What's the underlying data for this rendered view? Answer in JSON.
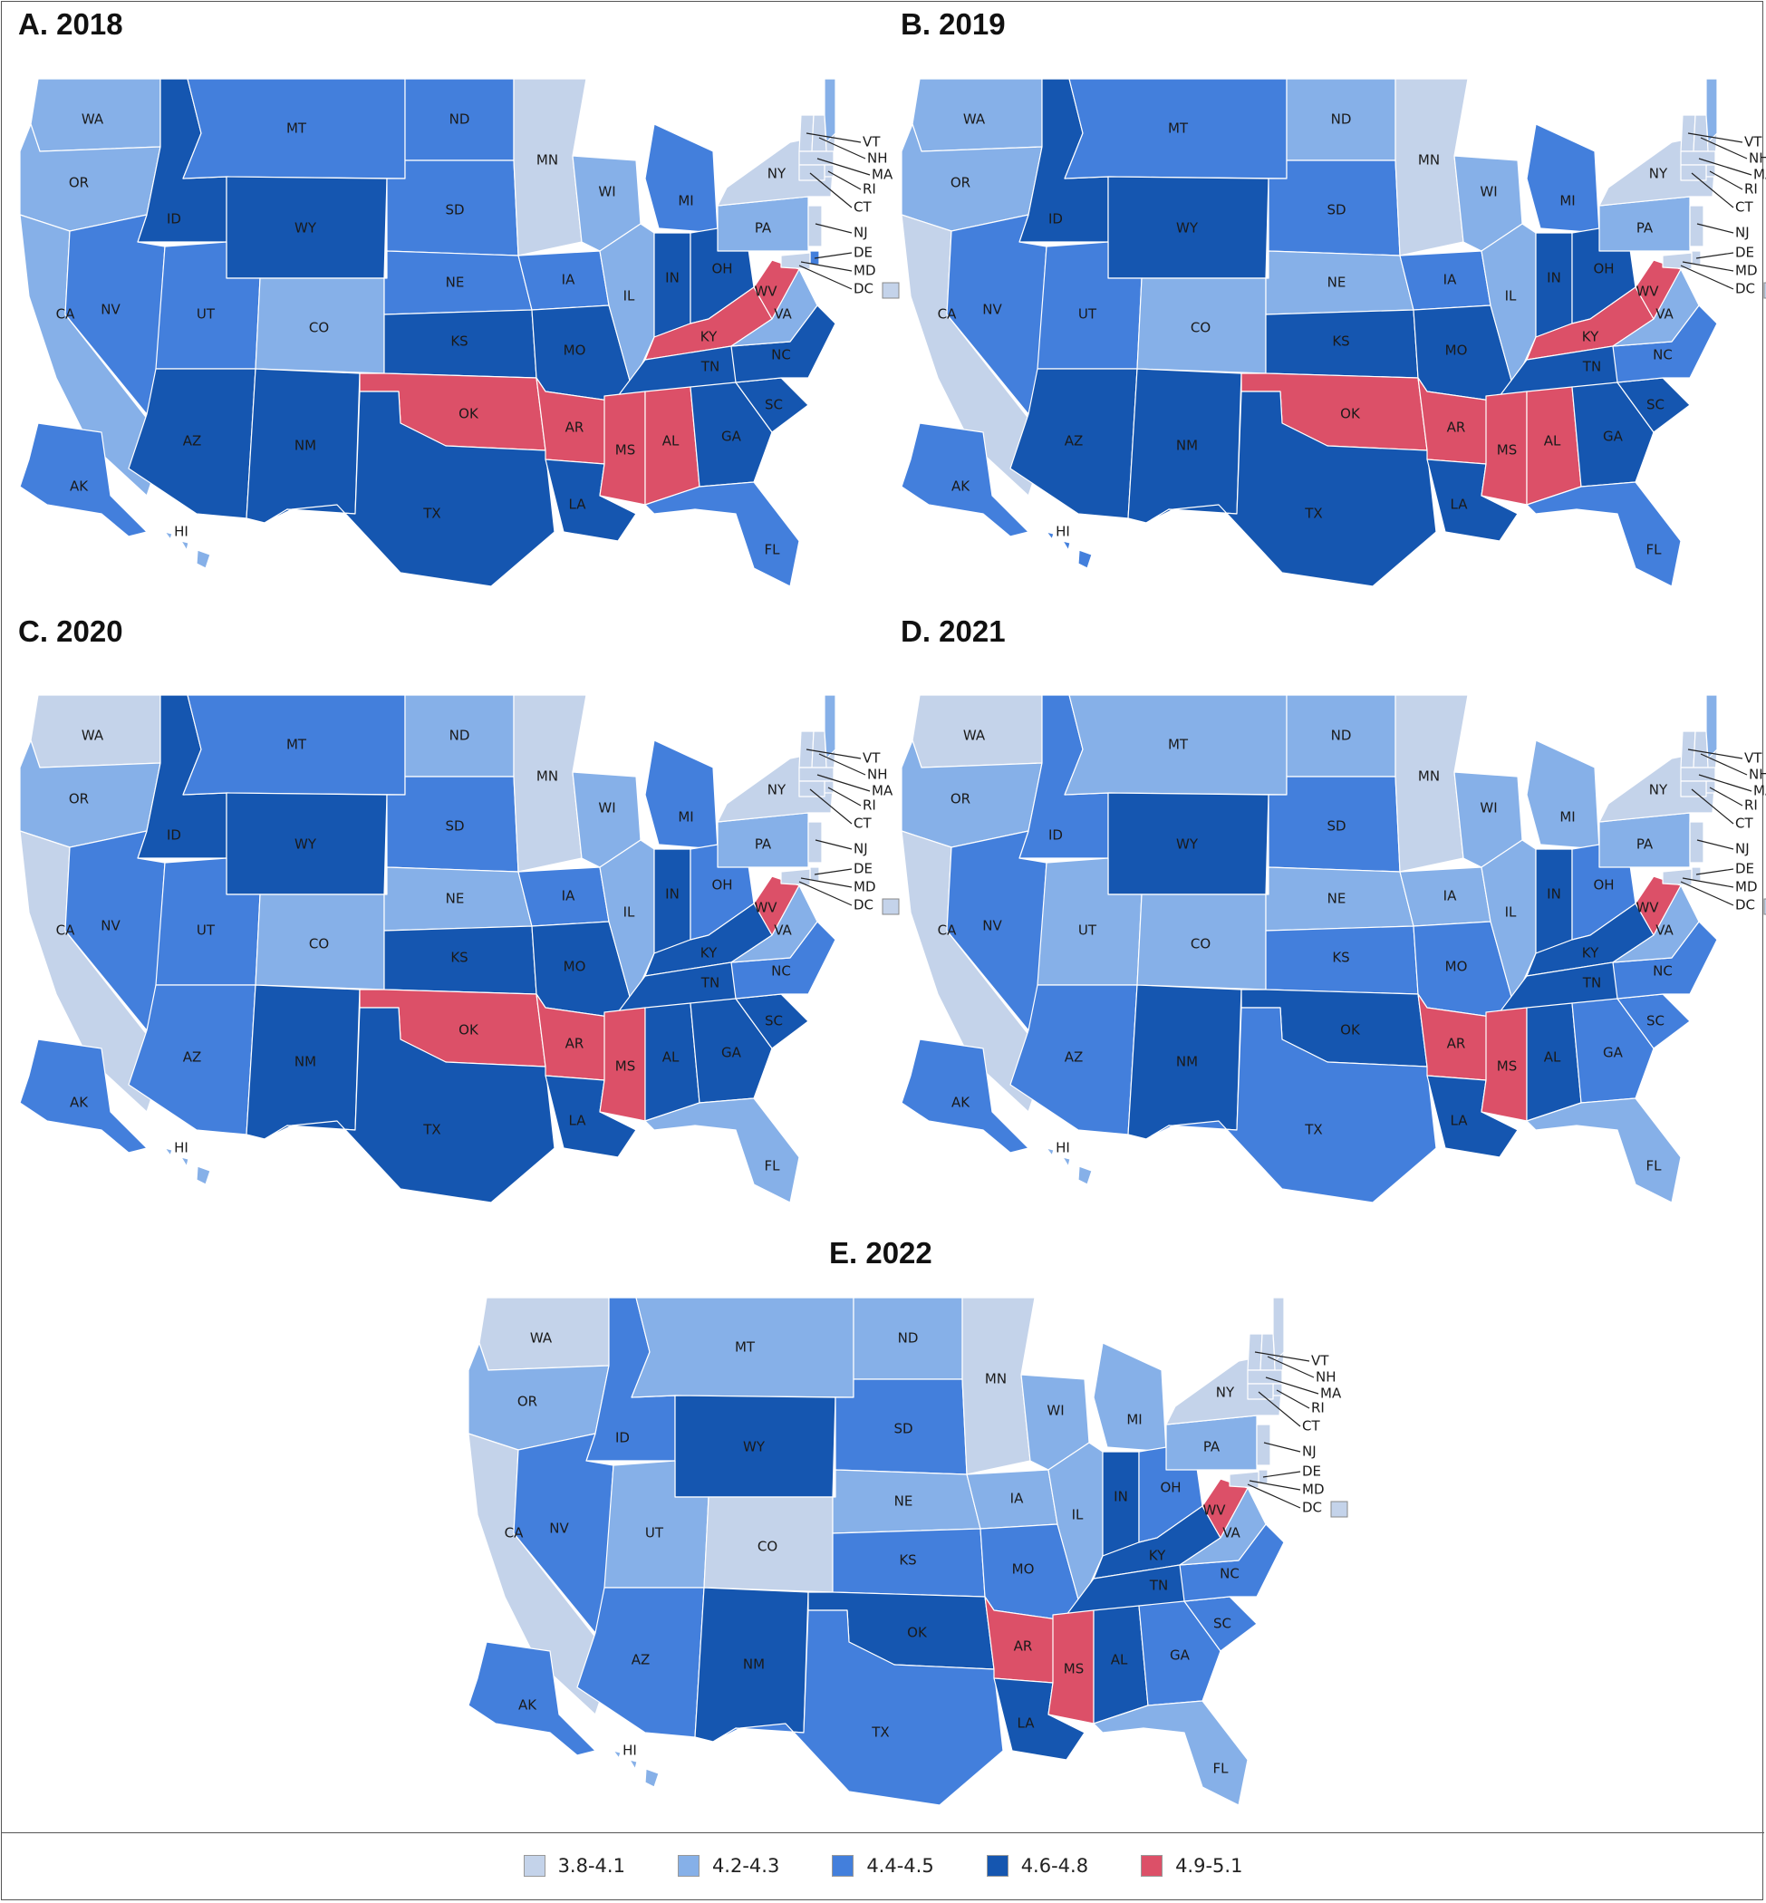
{
  "palette": {
    "1": "#c4d3ea",
    "2": "#86b0e8",
    "3": "#437fdc",
    "4": "#1556b0",
    "5": "#dc5068"
  },
  "legend": [
    {
      "bin": "1",
      "label": "3.8-4.1"
    },
    {
      "bin": "2",
      "label": "4.2-4.3"
    },
    {
      "bin": "3",
      "label": "4.4-4.5"
    },
    {
      "bin": "4",
      "label": "4.6-4.8"
    },
    {
      "bin": "5",
      "label": "4.9-5.1"
    }
  ],
  "panels": [
    {
      "title": "A. 2018",
      "bins": {
        "WA": "2",
        "OR": "2",
        "CA": "2",
        "ID": "4",
        "NV": "3",
        "MT": "3",
        "WY": "4",
        "UT": "3",
        "AZ": "4",
        "CO": "2",
        "NM": "4",
        "ND": "3",
        "SD": "3",
        "NE": "3",
        "KS": "4",
        "OK": "5",
        "TX": "4",
        "MN": "1",
        "IA": "3",
        "MO": "4",
        "AR": "5",
        "LA": "4",
        "WI": "2",
        "IL": "2",
        "MI": "3",
        "IN": "4",
        "OH": "4",
        "KY": "5",
        "TN": "4",
        "MS": "5",
        "AL": "5",
        "GA": "4",
        "FL": "3",
        "SC": "4",
        "NC": "4",
        "VA": "2",
        "WV": "5",
        "PA": "2",
        "NY": "1",
        "VT": "1",
        "NH": "1",
        "ME": "2",
        "MA": "1",
        "RI": "1",
        "CT": "1",
        "NJ": "1",
        "DE": "3",
        "MD": "1",
        "DC": "1",
        "AK": "3",
        "HI": "2"
      }
    },
    {
      "title": "B. 2019",
      "bins": {
        "WA": "2",
        "OR": "2",
        "CA": "1",
        "ID": "4",
        "NV": "3",
        "MT": "3",
        "WY": "4",
        "UT": "3",
        "AZ": "4",
        "CO": "2",
        "NM": "4",
        "ND": "2",
        "SD": "3",
        "NE": "2",
        "KS": "4",
        "OK": "5",
        "TX": "4",
        "MN": "1",
        "IA": "3",
        "MO": "4",
        "AR": "5",
        "LA": "4",
        "WI": "2",
        "IL": "2",
        "MI": "3",
        "IN": "4",
        "OH": "4",
        "KY": "5",
        "TN": "4",
        "MS": "5",
        "AL": "5",
        "GA": "4",
        "FL": "3",
        "SC": "4",
        "NC": "3",
        "VA": "2",
        "WV": "5",
        "PA": "2",
        "NY": "1",
        "VT": "1",
        "NH": "1",
        "ME": "2",
        "MA": "1",
        "RI": "1",
        "CT": "1",
        "NJ": "1",
        "DE": "1",
        "MD": "1",
        "DC": "1",
        "AK": "3",
        "HI": "3"
      }
    },
    {
      "title": "C. 2020",
      "bins": {
        "WA": "1",
        "OR": "2",
        "CA": "1",
        "ID": "4",
        "NV": "3",
        "MT": "3",
        "WY": "4",
        "UT": "3",
        "AZ": "3",
        "CO": "2",
        "NM": "4",
        "ND": "2",
        "SD": "3",
        "NE": "2",
        "KS": "4",
        "OK": "5",
        "TX": "4",
        "MN": "1",
        "IA": "3",
        "MO": "4",
        "AR": "5",
        "LA": "4",
        "WI": "2",
        "IL": "2",
        "MI": "3",
        "IN": "4",
        "OH": "3",
        "KY": "4",
        "TN": "4",
        "MS": "5",
        "AL": "4",
        "GA": "4",
        "FL": "2",
        "SC": "4",
        "NC": "3",
        "VA": "2",
        "WV": "5",
        "PA": "2",
        "NY": "1",
        "VT": "1",
        "NH": "1",
        "ME": "2",
        "MA": "1",
        "RI": "1",
        "CT": "1",
        "NJ": "1",
        "DE": "1",
        "MD": "1",
        "DC": "1",
        "AK": "3",
        "HI": "2"
      }
    },
    {
      "title": "D. 2021",
      "bins": {
        "WA": "1",
        "OR": "2",
        "CA": "1",
        "ID": "3",
        "NV": "3",
        "MT": "2",
        "WY": "4",
        "UT": "2",
        "AZ": "3",
        "CO": "2",
        "NM": "4",
        "ND": "2",
        "SD": "3",
        "NE": "2",
        "KS": "3",
        "OK": "4",
        "TX": "3",
        "MN": "1",
        "IA": "2",
        "MO": "3",
        "AR": "5",
        "LA": "4",
        "WI": "2",
        "IL": "2",
        "MI": "2",
        "IN": "4",
        "OH": "3",
        "KY": "4",
        "TN": "4",
        "MS": "5",
        "AL": "4",
        "GA": "3",
        "FL": "2",
        "SC": "3",
        "NC": "3",
        "VA": "2",
        "WV": "5",
        "PA": "2",
        "NY": "1",
        "VT": "1",
        "NH": "1",
        "ME": "2",
        "MA": "1",
        "RI": "1",
        "CT": "1",
        "NJ": "1",
        "DE": "1",
        "MD": "1",
        "DC": "1",
        "AK": "3",
        "HI": "2"
      }
    },
    {
      "title": "E. 2022",
      "bins": {
        "WA": "1",
        "OR": "2",
        "CA": "1",
        "ID": "3",
        "NV": "3",
        "MT": "2",
        "WY": "4",
        "UT": "2",
        "AZ": "3",
        "CO": "1",
        "NM": "4",
        "ND": "2",
        "SD": "3",
        "NE": "2",
        "KS": "3",
        "OK": "4",
        "TX": "3",
        "MN": "1",
        "IA": "2",
        "MO": "3",
        "AR": "5",
        "LA": "4",
        "WI": "2",
        "IL": "2",
        "MI": "2",
        "IN": "4",
        "OH": "3",
        "KY": "4",
        "TN": "4",
        "MS": "5",
        "AL": "4",
        "GA": "3",
        "FL": "2",
        "SC": "3",
        "NC": "3",
        "VA": "2",
        "WV": "5",
        "PA": "2",
        "NY": "1",
        "VT": "1",
        "NH": "1",
        "ME": "1",
        "MA": "1",
        "RI": "1",
        "CT": "1",
        "NJ": "1",
        "DE": "1",
        "MD": "1",
        "DC": "1",
        "AK": "3",
        "HI": "2"
      }
    }
  ]
}
